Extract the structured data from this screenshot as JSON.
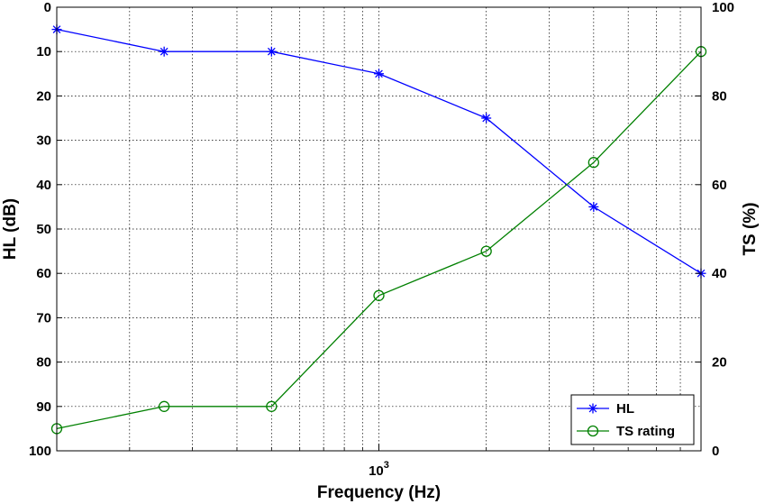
{
  "chart_data": {
    "type": "line",
    "x": [
      250,
      500,
      1000,
      2000,
      4000,
      8000
    ],
    "x_scale": "log",
    "x_tick_labels": [
      "10^3"
    ],
    "xlabel": "Frequency (Hz)",
    "ylabel_left": "HL (dB)",
    "ylabel_right": "TS (%)",
    "ylim_left": [
      0,
      100
    ],
    "ylim_left_reversed": true,
    "ylim_right": [
      0,
      100
    ],
    "y_ticks_left": [
      "0",
      "10",
      "20",
      "30",
      "40",
      "50",
      "60",
      "70",
      "80",
      "90",
      "100"
    ],
    "y_ticks_right": [
      "0",
      "20",
      "40",
      "60",
      "80",
      "100"
    ],
    "grid": true,
    "legend_position": "bottom-right",
    "series": [
      {
        "name": "HL",
        "axis": "left",
        "marker": "asterisk",
        "color": "#0000ff",
        "x": [
          125,
          250,
          500,
          1000,
          2000,
          4000,
          8000
        ],
        "values": [
          5,
          10,
          10,
          15,
          25,
          45,
          60
        ]
      },
      {
        "name": "TS rating",
        "axis": "right",
        "marker": "circle",
        "color": "#008000",
        "x": [
          125,
          250,
          500,
          1000,
          2000,
          4000,
          8000
        ],
        "values": [
          5,
          10,
          10,
          35,
          45,
          65,
          90
        ]
      }
    ]
  }
}
